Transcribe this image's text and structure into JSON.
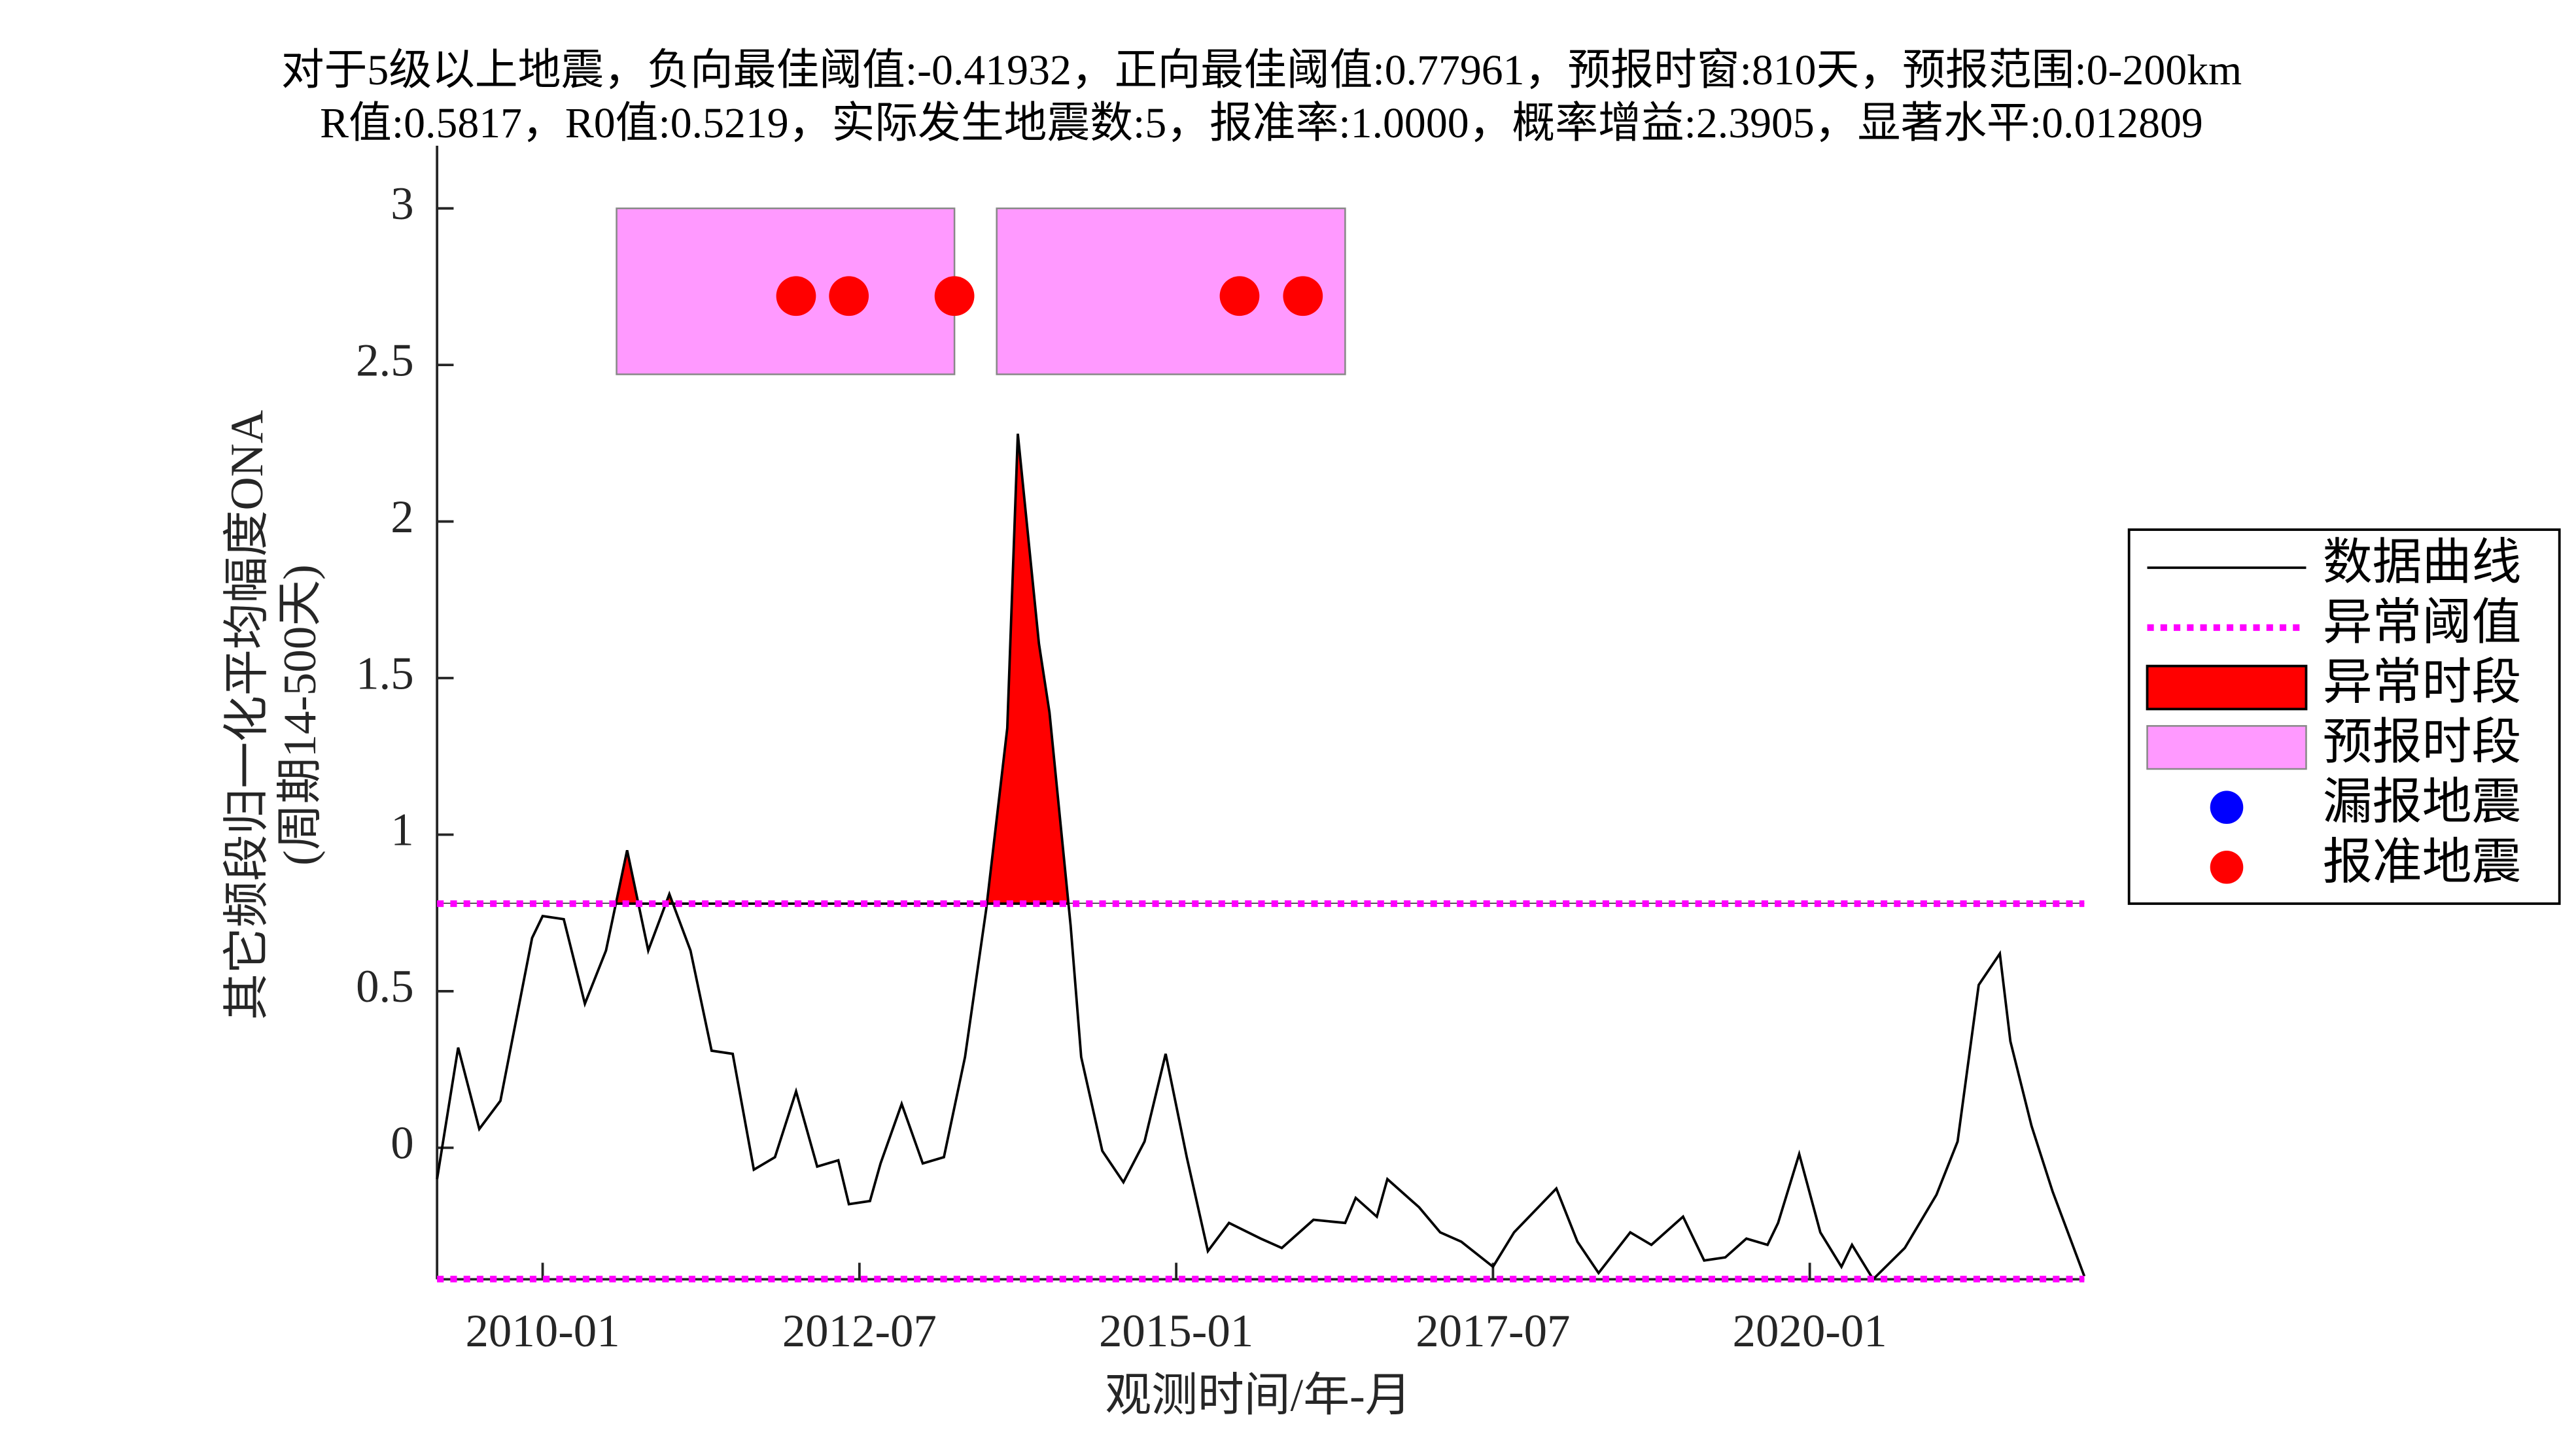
{
  "chart_data": {
    "type": "line",
    "title": "对于5级以上地震，负向最佳阈值:-0.41932，正向最佳阈值:0.77961，预报时窗:810天，预报范围:0-200km",
    "subtitle": "R值:0.5817，R0值:0.5219，实际发生地震数:5，报准率:1.0000，概率增益:2.3905，显著水平:0.012809",
    "x_label": "观测时间/年-月",
    "y_label": [
      "其它频段归一化平均幅度ONA",
      "(周期14-500天)"
    ],
    "xlim": [
      "2009-03",
      "2022-03"
    ],
    "xticks": [
      "2010-01",
      "2012-07",
      "2015-01",
      "2017-07",
      "2020-01"
    ],
    "ylim": [
      -0.42,
      3.2
    ],
    "yticks": [
      0,
      0.5,
      1,
      1.5,
      2,
      2.5,
      3
    ],
    "series": [
      {
        "name": "数据曲线",
        "color": "#000000",
        "x": [
          "2009-03",
          "2009-05",
          "2009-07",
          "2009-09",
          "2009-12",
          "2010-01",
          "2010-03",
          "2010-05",
          "2010-07",
          "2010-09",
          "2010-11",
          "2011-01",
          "2011-03",
          "2011-05",
          "2011-07",
          "2011-09",
          "2011-11",
          "2012-01",
          "2012-03",
          "2012-05",
          "2012-06",
          "2012-08",
          "2012-09",
          "2012-11",
          "2013-01",
          "2013-03",
          "2013-05",
          "2013-07",
          "2013-09",
          "2013-10",
          "2013-12",
          "2014-01",
          "2014-03",
          "2014-04",
          "2014-06",
          "2014-08",
          "2014-10",
          "2014-12",
          "2015-02",
          "2015-04",
          "2015-06",
          "2015-09",
          "2015-11",
          "2016-02",
          "2016-05",
          "2016-06",
          "2016-08",
          "2016-09",
          "2016-12",
          "2017-02",
          "2017-04",
          "2017-07",
          "2017-09",
          "2018-01",
          "2018-03",
          "2018-05",
          "2018-08",
          "2018-10",
          "2019-01",
          "2019-03",
          "2019-05",
          "2019-07",
          "2019-09",
          "2019-10",
          "2019-12",
          "2020-02",
          "2020-04",
          "2020-05",
          "2020-07",
          "2020-10",
          "2021-01",
          "2021-03",
          "2021-05",
          "2021-07",
          "2021-08",
          "2021-10",
          "2021-12",
          "2022-03"
        ],
        "values": [
          -0.1,
          0.32,
          0.06,
          0.15,
          0.67,
          0.74,
          0.73,
          0.46,
          0.63,
          0.95,
          0.63,
          0.81,
          0.63,
          0.31,
          0.3,
          -0.07,
          -0.03,
          0.18,
          -0.06,
          -0.04,
          -0.18,
          -0.17,
          -0.05,
          0.14,
          -0.05,
          -0.03,
          0.29,
          0.76,
          1.34,
          2.28,
          1.61,
          1.39,
          0.71,
          0.29,
          -0.01,
          -0.11,
          0.02,
          0.3,
          -0.03,
          -0.33,
          -0.24,
          -0.29,
          -0.32,
          -0.23,
          -0.24,
          -0.16,
          -0.22,
          -0.1,
          -0.19,
          -0.27,
          -0.3,
          -0.38,
          -0.27,
          -0.13,
          -0.3,
          -0.4,
          -0.27,
          -0.31,
          -0.22,
          -0.36,
          -0.35,
          -0.29,
          -0.31,
          -0.24,
          -0.02,
          -0.27,
          -0.38,
          -0.31,
          -0.42,
          -0.32,
          -0.15,
          0.02,
          0.52,
          0.62,
          0.34,
          0.07,
          -0.14,
          -0.41
        ]
      },
      {
        "name": "异常阈值",
        "color": "#ff00ff",
        "values": [
          0.77961,
          -0.41932
        ]
      },
      {
        "name": "异常时段",
        "color": "#ff0000"
      },
      {
        "name": "预报时段",
        "color": "#ff99ff",
        "x": [
          [
            "2010-08",
            "2013-04"
          ],
          [
            "2013-08",
            "2016-05"
          ]
        ],
        "values": [
          [
            2.47,
            3.0
          ],
          [
            2.47,
            3.0
          ]
        ]
      },
      {
        "name": "漏报地震",
        "color": "#0000ff",
        "x": [],
        "values": []
      },
      {
        "name": "报准地震",
        "color": "#ff0000",
        "x": [
          "2012-01",
          "2012-06",
          "2013-04",
          "2015-07",
          "2016-01"
        ],
        "values": [
          2.72,
          2.72,
          2.72,
          2.72,
          2.72
        ]
      }
    ]
  }
}
